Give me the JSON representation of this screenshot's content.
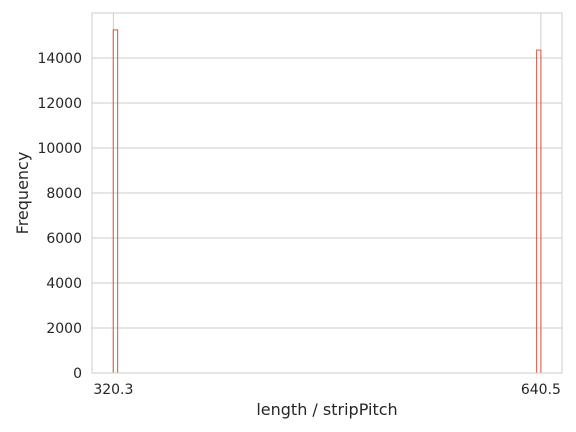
{
  "chart_data": {
    "type": "bar",
    "title": "",
    "xlabel": "length / stripPitch",
    "ylabel": "Frequency",
    "x_ticks": [
      "320.3",
      "640.5"
    ],
    "x_tick_values": [
      320.3,
      640.5
    ],
    "y_ticks": [
      "0",
      "2000",
      "4000",
      "6000",
      "8000",
      "10000",
      "12000",
      "14000"
    ],
    "y_tick_values": [
      0,
      2000,
      4000,
      6000,
      8000,
      10000,
      12000,
      14000
    ],
    "xlim": [
      304.3,
      656.3
    ],
    "ylim": [
      0,
      16000
    ],
    "grid": true,
    "bar_edge_color": "#e0533e",
    "bars": [
      {
        "x_start": 320.2,
        "x_end": 323.5,
        "value": 15250
      },
      {
        "x_start": 637.3,
        "x_end": 640.5,
        "value": 14350
      }
    ]
  }
}
